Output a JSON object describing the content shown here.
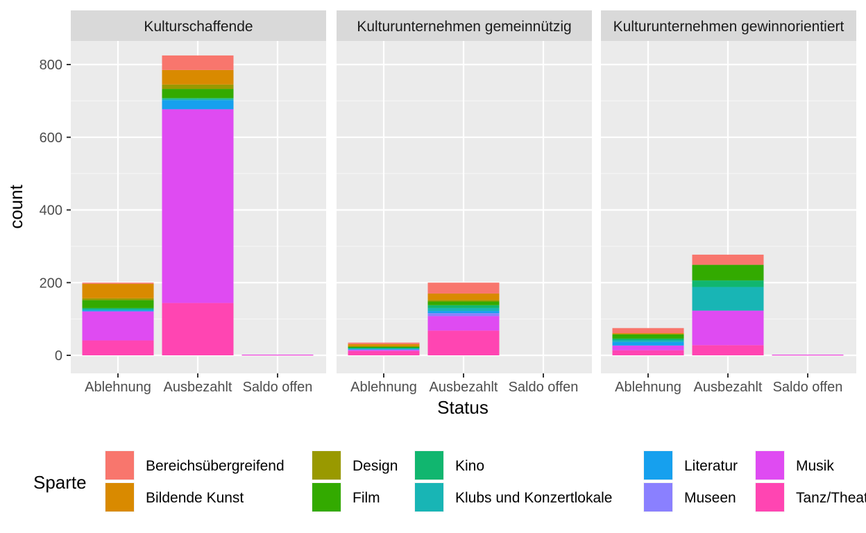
{
  "chart_data": {
    "type": "bar",
    "stacked": true,
    "facets": [
      "Kulturschaffende",
      "Kulturunternehmen gemeinnützig",
      "Kulturunternehmen gewinnorientiert"
    ],
    "categories": [
      "Ablehnung",
      "Ausbezahlt",
      "Saldo offen"
    ],
    "xlabel": "Status",
    "ylabel": "count",
    "ylim": [
      0,
      900
    ],
    "yticks": [
      0,
      200,
      400,
      600,
      800
    ],
    "grid": true,
    "legend": {
      "title": "Sparte",
      "position": "bottom"
    },
    "series": [
      {
        "name": "Bereichsübergreifend",
        "color": "#F8766D",
        "values": [
          [
            3,
            40,
            0
          ],
          [
            4,
            30,
            0
          ],
          [
            14,
            28,
            0
          ]
        ]
      },
      {
        "name": "Bildende Kunst",
        "color": "#D98A00",
        "values": [
          [
            40,
            40,
            0
          ],
          [
            6,
            18,
            0
          ],
          [
            3,
            0,
            0
          ]
        ]
      },
      {
        "name": "Design",
        "color": "#999900",
        "values": [
          [
            5,
            12,
            0
          ],
          [
            1,
            4,
            0
          ],
          [
            0,
            0,
            0
          ]
        ]
      },
      {
        "name": "Film",
        "color": "#33AA00",
        "values": [
          [
            22,
            25,
            0
          ],
          [
            3,
            10,
            0
          ],
          [
            12,
            43,
            0
          ]
        ]
      },
      {
        "name": "Kino",
        "color": "#11B66F",
        "values": [
          [
            3,
            3,
            0
          ],
          [
            2,
            8,
            0
          ],
          [
            4,
            18,
            0
          ]
        ]
      },
      {
        "name": "Klubs und Konzertlokale",
        "color": "#18B5B5",
        "values": [
          [
            3,
            3,
            0
          ],
          [
            2,
            8,
            0
          ],
          [
            5,
            65,
            0
          ]
        ]
      },
      {
        "name": "Literatur",
        "color": "#16A0EE",
        "values": [
          [
            3,
            25,
            0
          ],
          [
            1,
            6,
            0
          ],
          [
            10,
            0,
            0
          ]
        ]
      },
      {
        "name": "Museen",
        "color": "#8A80FF",
        "values": [
          [
            0,
            0,
            0
          ],
          [
            1,
            8,
            0
          ],
          [
            0,
            0,
            0
          ]
        ]
      },
      {
        "name": "Musik",
        "color": "#DF4BF2",
        "values": [
          [
            80,
            533,
            1
          ],
          [
            3,
            40,
            0
          ],
          [
            13,
            95,
            1
          ]
        ]
      },
      {
        "name": "Tanz/Theater",
        "color": "#FF45B2",
        "values": [
          [
            41,
            144,
            1
          ],
          [
            12,
            68,
            0
          ],
          [
            14,
            28,
            1
          ]
        ]
      }
    ]
  }
}
